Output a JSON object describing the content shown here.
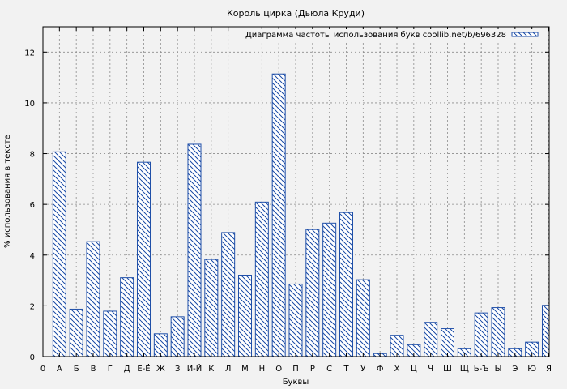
{
  "chart_data": {
    "type": "bar",
    "title": "Король цирка (Дьюла Круди)",
    "xlabel": "Буквы",
    "ylabel": "% использования в тексте",
    "legend": {
      "label": "Диаграмма частоты использования букв coollib.net/b/696328",
      "position": "top-right"
    },
    "grid": true,
    "ylim": [
      0,
      13
    ],
    "yticks": [
      0,
      2,
      4,
      6,
      8,
      10,
      12
    ],
    "xtick_zero_label": "0",
    "categories": [
      "А",
      "Б",
      "В",
      "Г",
      "Д",
      "Е-Ё",
      "Ж",
      "З",
      "И-Й",
      "К",
      "Л",
      "М",
      "Н",
      "О",
      "П",
      "Р",
      "С",
      "Т",
      "У",
      "Ф",
      "Х",
      "Ц",
      "Ч",
      "Ш",
      "Щ",
      "Ь-Ъ",
      "Ы",
      "Э",
      "Ю",
      "Я"
    ],
    "series": [
      {
        "name": "Диаграмма частоты использования букв coollib.net/b/696328",
        "values": [
          8.07,
          1.87,
          4.53,
          1.79,
          3.11,
          7.66,
          0.9,
          1.57,
          8.37,
          3.83,
          4.89,
          3.21,
          6.09,
          11.14,
          2.86,
          5.01,
          5.26,
          5.68,
          3.03,
          0.12,
          0.84,
          0.47,
          1.35,
          1.1,
          0.31,
          1.72,
          1.93,
          0.31,
          0.57,
          2.02
        ]
      }
    ],
    "colors": {
      "bar_stroke": "#1f4fa8",
      "background": "#f2f2f2",
      "grid": "#8c8c8c"
    }
  }
}
